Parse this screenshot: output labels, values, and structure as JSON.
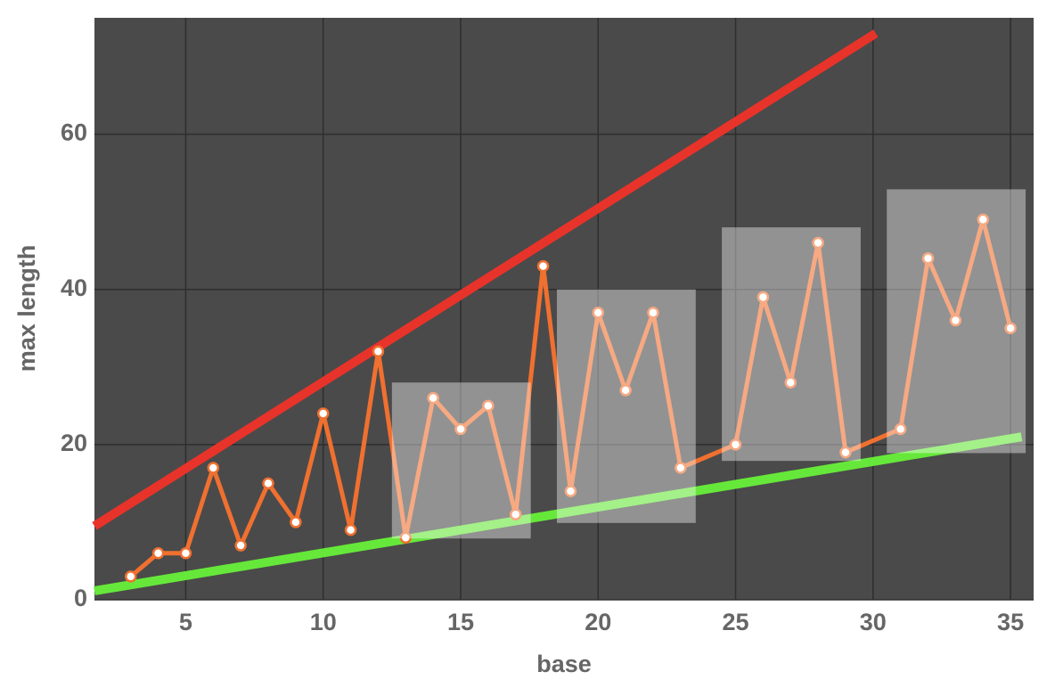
{
  "chart_data": {
    "type": "line",
    "x_label": "base",
    "y_label": "max length",
    "x": [
      3,
      4,
      5,
      6,
      7,
      8,
      9,
      10,
      11,
      12,
      13,
      14,
      15,
      16,
      17,
      18,
      19,
      20,
      21,
      22,
      23,
      25,
      26,
      27,
      28,
      29,
      31,
      32,
      33,
      34,
      35
    ],
    "values": [
      3,
      6,
      6,
      17,
      7,
      15,
      10,
      24,
      9,
      32,
      8,
      26,
      22,
      25,
      11,
      43,
      14,
      37,
      27,
      37,
      17,
      20,
      39,
      28,
      46,
      19,
      22,
      44,
      36,
      49,
      35
    ],
    "color": "#f07030",
    "reference_lines": [
      {
        "color": "#e8332a",
        "x": [
          1.68,
          30.1
        ],
        "values": [
          9.5,
          73
        ]
      },
      {
        "color": "#66e83a",
        "x": [
          1.68,
          35.4
        ],
        "values": [
          1.15,
          21
        ]
      }
    ],
    "highlight_boxes": [
      {
        "x": [
          12.5,
          17.55
        ],
        "y": [
          7.9,
          28
        ]
      },
      {
        "x": [
          18.5,
          23.55
        ],
        "y": [
          9.9,
          40
        ]
      },
      {
        "x": [
          24.5,
          29.55
        ],
        "y": [
          17.9,
          48
        ]
      },
      {
        "x": [
          30.5,
          35.55
        ],
        "y": [
          18.9,
          52.9
        ]
      }
    ],
    "xlim": [
      1.68,
      35.84
    ],
    "ylim": [
      0,
      75
    ],
    "xticks": [
      5,
      10,
      15,
      20,
      25,
      30,
      35
    ],
    "yticks": [
      0,
      20,
      40,
      60
    ],
    "grid": true
  }
}
